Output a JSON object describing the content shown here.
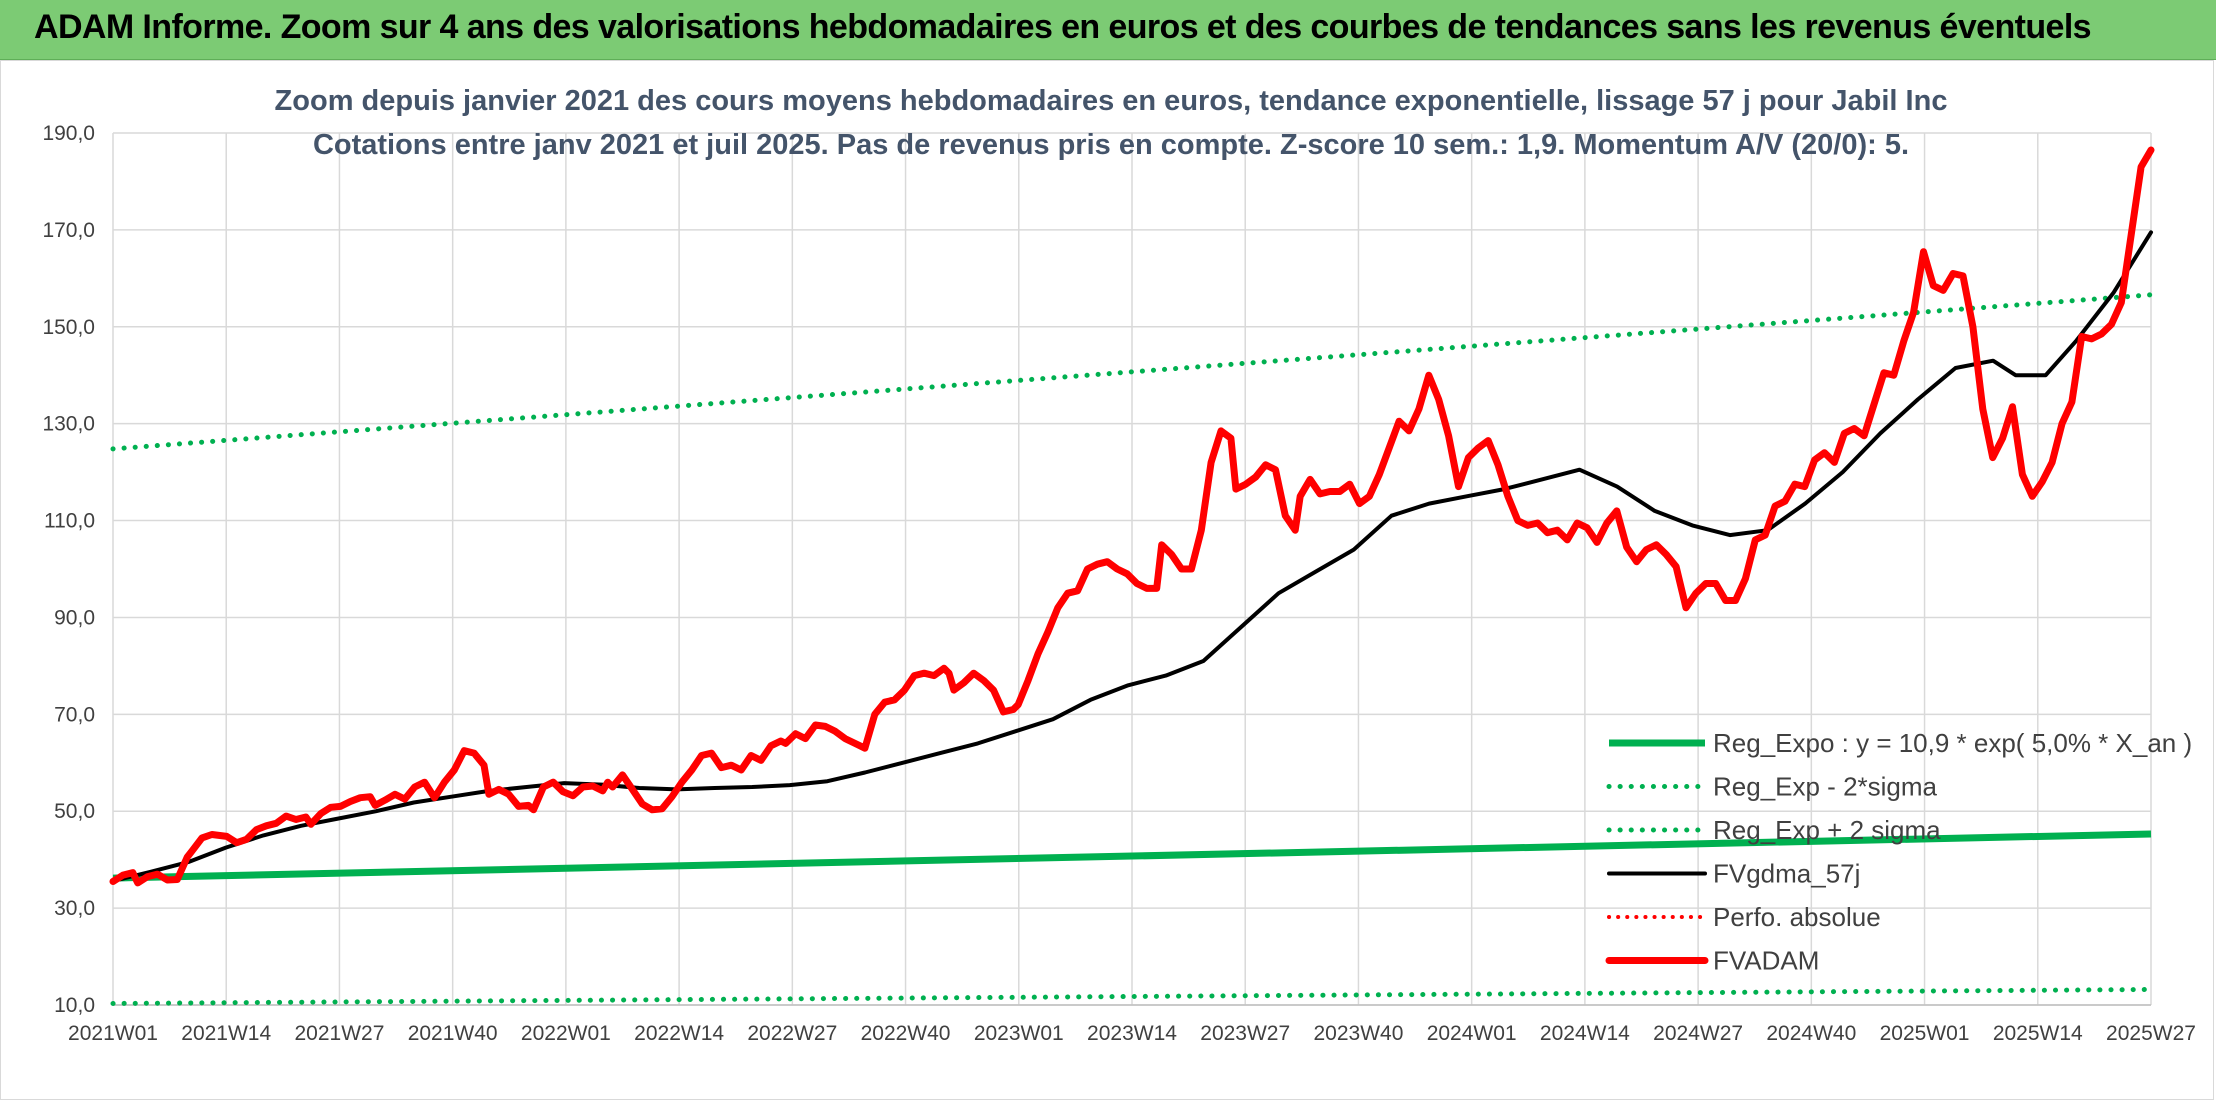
{
  "banner": {
    "title": "ADAM Informe. Zoom sur 4 ans des valorisations hebdomadaires en euros et des courbes de tendances sans les revenus éventuels"
  },
  "chart_data": {
    "type": "line",
    "title": "Zoom depuis janvier 2021 des cours moyens hebdomadaires en euros, tendance exponentielle, lissage 57 j pour Jabil Inc",
    "subtitle": "Cotations entre janv 2021 et juil 2025. Pas de revenus pris en compte. Z-score 10 sem.: 1,9. Momentum A/V (20/0): 5.",
    "xlabel": "",
    "ylabel": "",
    "ylim": [
      10,
      190
    ],
    "yticks": [
      "10,0",
      "30,0",
      "50,0",
      "70,0",
      "90,0",
      "110,0",
      "130,0",
      "150,0",
      "170,0",
      "190,0"
    ],
    "x_tick_labels": [
      "2021W01",
      "2021W14",
      "2021W27",
      "2021W40",
      "2022W01",
      "2022W14",
      "2022W27",
      "2022W40",
      "2023W01",
      "2023W14",
      "2023W27",
      "2023W40",
      "2024W01",
      "2024W14",
      "2024W27",
      "2024W40",
      "2025W01",
      "2025W14",
      "2025W27"
    ],
    "grid": true,
    "legend_position": "bottom-right",
    "colors": {
      "reg_expo": "#00b050",
      "bands": "#00b050",
      "fvgdma": "#000000",
      "perfo": "#ff0000",
      "fvadam": "#ff0000",
      "grid": "#d9d9d9",
      "axis_text": "#404040",
      "title": "#44546a"
    },
    "series": [
      {
        "name": "Reg_Expo : y = 10,9 * exp( 5,0% *  X_an )",
        "style": "solid",
        "points": [
          [
            0,
            36.2
          ],
          [
            235,
            45.3
          ]
        ]
      },
      {
        "name": "Reg_Exp - 2*sigma",
        "style": "dotted",
        "points": [
          [
            0,
            10.3
          ],
          [
            235,
            13.2
          ]
        ]
      },
      {
        "name": "Reg_Exp + 2 sigma",
        "style": "dotted",
        "points": [
          [
            0,
            124.8
          ],
          [
            235,
            156.6
          ]
        ]
      },
      {
        "name": "FVgdma_57j",
        "style": "solid",
        "points": [
          [
            0,
            35.6
          ],
          [
            5,
            37.5
          ],
          [
            10,
            39.5
          ],
          [
            15,
            42.5
          ],
          [
            20,
            45.0
          ],
          [
            25,
            47.0
          ],
          [
            30,
            48.5
          ],
          [
            35,
            50.0
          ],
          [
            40,
            51.8
          ],
          [
            45,
            53.0
          ],
          [
            50,
            54.2
          ],
          [
            55,
            55.0
          ],
          [
            60,
            55.8
          ],
          [
            65,
            55.5
          ],
          [
            70,
            54.8
          ],
          [
            75,
            54.5
          ],
          [
            80,
            54.8
          ],
          [
            85,
            55.0
          ],
          [
            90,
            55.4
          ],
          [
            95,
            56.2
          ],
          [
            100,
            58.0
          ],
          [
            105,
            60.0
          ],
          [
            110,
            62.0
          ],
          [
            115,
            64.0
          ],
          [
            120,
            66.5
          ],
          [
            125,
            69.0
          ],
          [
            130,
            73.0
          ],
          [
            135,
            76.0
          ],
          [
            140,
            78.0
          ],
          [
            145,
            81.0
          ],
          [
            150,
            88.0
          ],
          [
            155,
            95.0
          ],
          [
            160,
            99.5
          ],
          [
            165,
            104.0
          ],
          [
            170,
            111.0
          ],
          [
            175,
            113.5
          ],
          [
            180,
            115.0
          ],
          [
            185,
            116.5
          ],
          [
            190,
            118.5
          ],
          [
            195,
            120.5
          ],
          [
            200,
            117.0
          ],
          [
            205,
            112.0
          ],
          [
            210,
            109.0
          ],
          [
            215,
            107.0
          ],
          [
            220,
            108.0
          ],
          [
            225,
            113.5
          ],
          [
            230,
            120.0
          ],
          [
            235,
            128.0
          ],
          [
            240,
            135.0
          ],
          [
            245,
            141.5
          ],
          [
            250,
            143.0
          ],
          [
            253,
            140.0
          ],
          [
            257,
            140.0
          ],
          [
            261,
            147.0
          ],
          [
            266,
            157.0
          ],
          [
            271,
            169.5
          ]
        ]
      },
      {
        "name": "Perfo. absolue",
        "style": "dotted",
        "points": []
      },
      {
        "name": "FVADAM",
        "style": "solid",
        "points": [
          [
            0,
            35.5
          ],
          [
            2,
            36.8
          ],
          [
            4,
            37.3
          ],
          [
            5,
            35.2
          ],
          [
            7,
            36.5
          ],
          [
            9,
            37.0
          ],
          [
            11,
            35.8
          ],
          [
            13,
            35.9
          ],
          [
            15,
            40.5
          ],
          [
            16,
            41.8
          ],
          [
            18,
            44.5
          ],
          [
            20,
            45.2
          ],
          [
            23,
            44.8
          ],
          [
            25,
            43.5
          ],
          [
            27,
            44.2
          ],
          [
            29,
            46.2
          ],
          [
            31,
            47.0
          ],
          [
            33,
            47.5
          ],
          [
            35,
            49.0
          ],
          [
            37,
            48.3
          ],
          [
            39,
            48.8
          ],
          [
            40,
            47.3
          ],
          [
            42,
            49.5
          ],
          [
            44,
            50.8
          ],
          [
            46,
            51.0
          ],
          [
            48,
            52.0
          ],
          [
            50,
            52.8
          ],
          [
            52,
            53.0
          ],
          [
            53,
            51.2
          ],
          [
            55,
            52.3
          ],
          [
            57,
            53.5
          ],
          [
            59,
            52.5
          ],
          [
            61,
            55.0
          ],
          [
            63,
            56.0
          ],
          [
            65,
            52.8
          ],
          [
            67,
            56.0
          ],
          [
            69,
            58.5
          ],
          [
            71,
            62.5
          ],
          [
            73,
            62.0
          ],
          [
            75,
            59.5
          ],
          [
            76,
            53.5
          ],
          [
            78,
            54.5
          ],
          [
            80,
            53.5
          ],
          [
            82,
            51.0
          ],
          [
            84,
            51.2
          ],
          [
            85,
            50.3
          ],
          [
            87,
            55.0
          ],
          [
            89,
            56.0
          ],
          [
            91,
            54.0
          ],
          [
            93,
            53.2
          ],
          [
            95,
            55.0
          ],
          [
            97,
            55.2
          ],
          [
            99,
            54.2
          ],
          [
            100,
            56.0
          ],
          [
            101,
            55.0
          ],
          [
            103,
            57.5
          ],
          [
            105,
            54.5
          ],
          [
            107,
            51.5
          ],
          [
            109,
            50.3
          ],
          [
            111,
            50.5
          ],
          [
            113,
            53.0
          ],
          [
            115,
            56.0
          ],
          [
            117,
            58.5
          ],
          [
            119,
            61.5
          ],
          [
            121,
            62.0
          ],
          [
            123,
            59.0
          ],
          [
            125,
            59.5
          ],
          [
            127,
            58.5
          ],
          [
            129,
            61.5
          ],
          [
            131,
            60.5
          ],
          [
            133,
            63.5
          ],
          [
            135,
            64.5
          ],
          [
            136,
            64.0
          ],
          [
            138,
            66.0
          ],
          [
            140,
            65.0
          ],
          [
            142,
            67.8
          ],
          [
            144,
            67.5
          ],
          [
            146,
            66.5
          ],
          [
            148,
            65.0
          ],
          [
            150,
            64.0
          ],
          [
            152,
            63.0
          ],
          [
            154,
            70.0
          ],
          [
            156,
            72.5
          ],
          [
            158,
            73.0
          ],
          [
            160,
            75.0
          ],
          [
            162,
            78.0
          ],
          [
            164,
            78.5
          ],
          [
            166,
            78.0
          ],
          [
            168,
            79.5
          ],
          [
            169,
            78.5
          ],
          [
            170,
            75.0
          ],
          [
            172,
            76.5
          ],
          [
            174,
            78.5
          ],
          [
            176,
            77.0
          ],
          [
            178,
            75.0
          ],
          [
            180,
            70.5
          ],
          [
            182,
            71.0
          ],
          [
            183,
            72.0
          ],
          [
            185,
            77.0
          ],
          [
            187,
            82.5
          ],
          [
            189,
            87.0
          ],
          [
            191,
            92.0
          ],
          [
            193,
            95.0
          ],
          [
            195,
            95.5
          ],
          [
            197,
            100.0
          ],
          [
            199,
            101.0
          ],
          [
            201,
            101.5
          ],
          [
            203,
            100.0
          ],
          [
            205,
            99.0
          ],
          [
            207,
            97.0
          ],
          [
            209,
            96.0
          ],
          [
            211,
            96.0
          ],
          [
            212,
            105.0
          ],
          [
            214,
            103.0
          ],
          [
            216,
            100.0
          ],
          [
            218,
            100.0
          ],
          [
            220,
            108.0
          ],
          [
            222,
            122.0
          ],
          [
            224,
            128.5
          ],
          [
            226,
            127.0
          ],
          [
            227,
            116.5
          ],
          [
            229,
            117.5
          ],
          [
            231,
            119.0
          ],
          [
            233,
            121.5
          ],
          [
            235,
            120.5
          ],
          [
            237,
            111.0
          ],
          [
            239,
            108.0
          ],
          [
            240,
            115.0
          ],
          [
            242,
            118.5
          ],
          [
            244,
            115.5
          ],
          [
            246,
            116.0
          ],
          [
            248,
            116.0
          ],
          [
            250,
            117.5
          ],
          [
            252,
            113.5
          ],
          [
            254,
            115.0
          ],
          [
            256,
            119.5
          ],
          [
            258,
            125.0
          ],
          [
            260,
            130.5
          ],
          [
            262,
            128.5
          ],
          [
            264,
            133.0
          ],
          [
            266,
            140.0
          ],
          [
            268,
            135.0
          ],
          [
            270,
            127.5
          ],
          [
            272,
            117.0
          ],
          [
            274,
            123.0
          ],
          [
            276,
            125.0
          ],
          [
            278,
            126.5
          ],
          [
            280,
            121.5
          ],
          [
            282,
            115.0
          ],
          [
            284,
            110.0
          ],
          [
            286,
            109.0
          ],
          [
            288,
            109.5
          ],
          [
            290,
            107.5
          ],
          [
            292,
            108.0
          ],
          [
            294,
            106.0
          ],
          [
            296,
            109.5
          ],
          [
            298,
            108.5
          ],
          [
            300,
            105.5
          ],
          [
            302,
            109.5
          ],
          [
            304,
            112.0
          ],
          [
            306,
            104.5
          ],
          [
            308,
            101.5
          ],
          [
            310,
            104.0
          ],
          [
            312,
            105.0
          ],
          [
            314,
            103.0
          ],
          [
            316,
            100.5
          ],
          [
            318,
            92.0
          ],
          [
            320,
            95.0
          ],
          [
            322,
            97.0
          ],
          [
            324,
            97.0
          ],
          [
            326,
            93.5
          ],
          [
            328,
            93.5
          ],
          [
            330,
            98.0
          ],
          [
            332,
            106.0
          ],
          [
            334,
            107.0
          ],
          [
            336,
            113.0
          ],
          [
            338,
            114.0
          ],
          [
            340,
            117.5
          ],
          [
            342,
            117.0
          ],
          [
            344,
            122.5
          ],
          [
            346,
            124.0
          ],
          [
            348,
            122.0
          ],
          [
            350,
            128.0
          ],
          [
            352,
            129.0
          ],
          [
            354,
            127.5
          ],
          [
            356,
            134.0
          ],
          [
            358,
            140.5
          ],
          [
            360,
            140.0
          ],
          [
            362,
            147.0
          ],
          [
            364,
            153.0
          ],
          [
            366,
            165.5
          ],
          [
            368,
            158.5
          ],
          [
            370,
            157.5
          ],
          [
            372,
            161.0
          ],
          [
            374,
            160.5
          ],
          [
            376,
            150.0
          ],
          [
            378,
            133.0
          ],
          [
            380,
            123.0
          ],
          [
            382,
            127.0
          ],
          [
            384,
            133.5
          ],
          [
            386,
            119.5
          ],
          [
            388,
            115.0
          ],
          [
            390,
            118.0
          ],
          [
            392,
            122.0
          ],
          [
            394,
            130.0
          ],
          [
            396,
            134.5
          ],
          [
            398,
            148.0
          ],
          [
            400,
            147.5
          ],
          [
            402,
            148.5
          ],
          [
            404,
            150.5
          ],
          [
            406,
            155.0
          ],
          [
            408,
            169.0
          ],
          [
            410,
            183.0
          ],
          [
            412,
            186.5
          ]
        ]
      }
    ]
  },
  "legend": [
    "Reg_Expo : y = 10,9 * exp( 5,0% *  X_an )",
    "Reg_Exp - 2*sigma",
    "Reg_Exp + 2 sigma",
    "FVgdma_57j",
    "Perfo. absolue",
    "FVADAM"
  ]
}
